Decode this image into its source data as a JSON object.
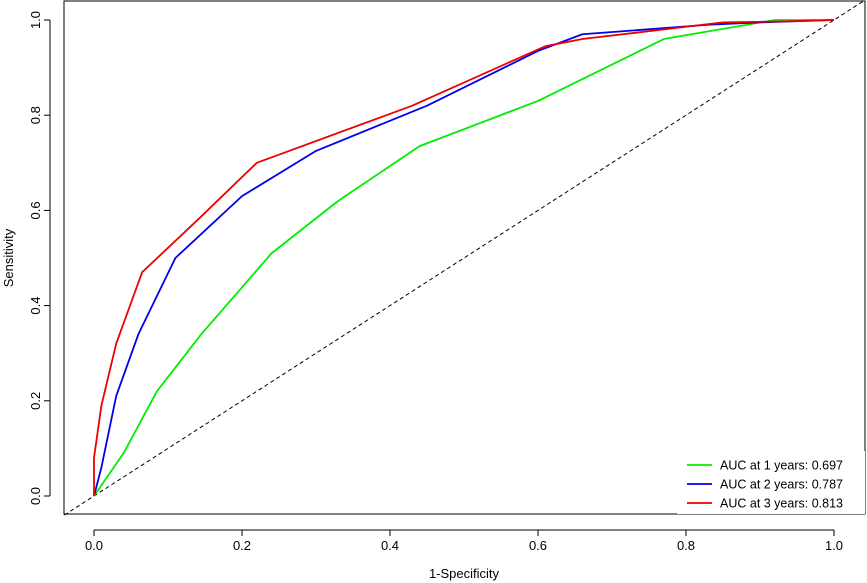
{
  "chart_data": {
    "type": "line",
    "xlabel": "1-Specificity",
    "ylabel": "Sensitivity",
    "xlim": [
      0,
      1
    ],
    "ylim": [
      0,
      1
    ],
    "x_ticks": [
      "0.0",
      "0.2",
      "0.4",
      "0.6",
      "0.8",
      "1.0"
    ],
    "y_ticks": [
      "0.0",
      "0.2",
      "0.4",
      "0.6",
      "0.8",
      "1.0"
    ],
    "grid": false,
    "legend_position": "bottom-right",
    "reference_line": {
      "style": "dashed",
      "color": "#000000",
      "x": [
        0,
        1
      ],
      "y": [
        0,
        1
      ]
    },
    "series": [
      {
        "name": "AUC at 1 years: 0.697",
        "color": "#00ee00",
        "x": [
          0,
          0.04,
          0.085,
          0.145,
          0.24,
          0.33,
          0.44,
          0.6,
          0.77,
          0.92,
          1.0
        ],
        "y": [
          0,
          0.09,
          0.22,
          0.34,
          0.51,
          0.62,
          0.735,
          0.83,
          0.96,
          1.0,
          1.0
        ]
      },
      {
        "name": "AUC at 2 years: 0.787",
        "color": "#0000ee",
        "x": [
          0,
          0.01,
          0.03,
          0.06,
          0.11,
          0.2,
          0.3,
          0.45,
          0.6,
          0.66,
          0.83,
          0.9,
          1.0
        ],
        "y": [
          0,
          0.06,
          0.21,
          0.34,
          0.5,
          0.63,
          0.725,
          0.82,
          0.935,
          0.97,
          0.99,
          0.995,
          1.0
        ]
      },
      {
        "name": "AUC at 3 years: 0.813",
        "color": "#ee0000",
        "x": [
          0,
          0.0,
          0.01,
          0.03,
          0.065,
          0.14,
          0.22,
          0.43,
          0.61,
          0.66,
          0.85,
          0.93,
          1.0
        ],
        "y": [
          0,
          0.08,
          0.19,
          0.32,
          0.47,
          0.58,
          0.7,
          0.82,
          0.945,
          0.96,
          0.995,
          0.997,
          1.0
        ]
      }
    ]
  }
}
